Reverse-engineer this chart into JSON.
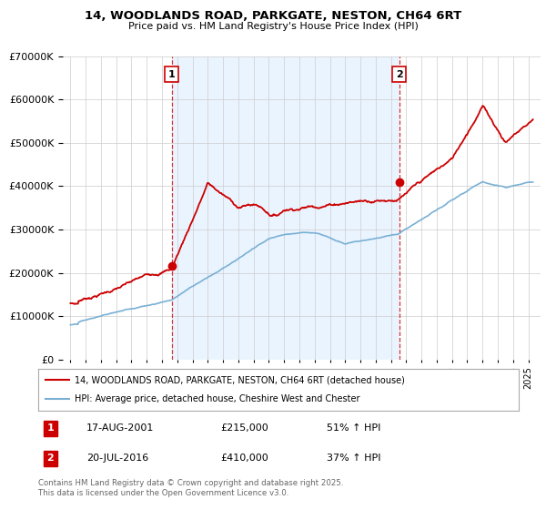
{
  "title": "14, WOODLANDS ROAD, PARKGATE, NESTON, CH64 6RT",
  "subtitle": "Price paid vs. HM Land Registry's House Price Index (HPI)",
  "legend_line1": "14, WOODLANDS ROAD, PARKGATE, NESTON, CH64 6RT (detached house)",
  "legend_line2": "HPI: Average price, detached house, Cheshire West and Chester",
  "transaction1_label": "1",
  "transaction1_date": "17-AUG-2001",
  "transaction1_price": "£215,000",
  "transaction1_hpi": "51% ↑ HPI",
  "transaction1_x": 2001.63,
  "transaction1_y": 215000,
  "transaction2_label": "2",
  "transaction2_date": "20-JUL-2016",
  "transaction2_price": "£410,000",
  "transaction2_hpi": "37% ↑ HPI",
  "transaction2_x": 2016.55,
  "transaction2_y": 410000,
  "ylim": [
    0,
    700000
  ],
  "xlim_start": 1994.5,
  "xlim_end": 2025.8,
  "red_color": "#cc0000",
  "blue_color": "#7ab0d4",
  "shade_color": "#ddeeff",
  "footer": "Contains HM Land Registry data © Crown copyright and database right 2025.\nThis data is licensed under the Open Government Licence v3.0.",
  "background_color": "#ffffff",
  "grid_color": "#cccccc"
}
